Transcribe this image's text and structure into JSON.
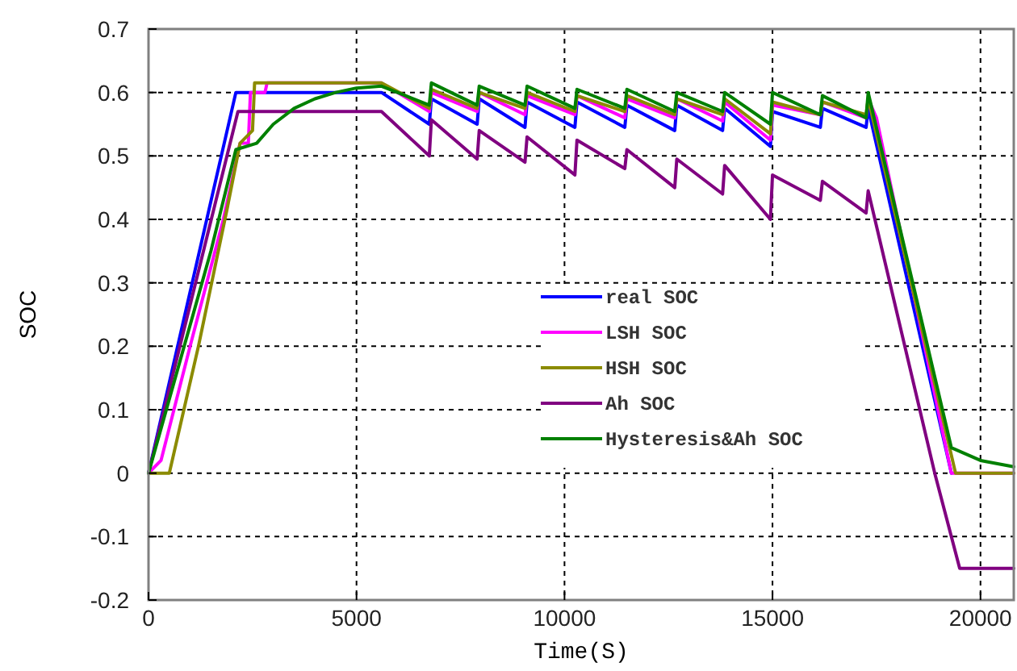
{
  "chart_data": {
    "type": "line",
    "xlabel": "Time(S)",
    "ylabel": "SOC",
    "xlim": [
      0,
      20800
    ],
    "xticks": [
      0,
      5000,
      10000,
      15000,
      20000
    ],
    "ylim": [
      -0.2,
      0.7
    ],
    "yticks": [
      -0.2,
      -0.1,
      0,
      0.1,
      0.2,
      0.3,
      0.4,
      0.5,
      0.6,
      0.7
    ],
    "grid": true,
    "legend": "right",
    "line_style": "solid",
    "marker": "none",
    "series": [
      {
        "name": "real SOC",
        "color": "#0000ff",
        "x": [
          0,
          2100,
          5600,
          6750,
          6800,
          7900,
          7950,
          9050,
          9100,
          10250,
          10300,
          11450,
          11500,
          12650,
          12700,
          13800,
          13850,
          14950,
          15000,
          16150,
          16200,
          17250,
          17300,
          19300
        ],
        "values": [
          0,
          0.6,
          0.6,
          0.55,
          0.59,
          0.55,
          0.59,
          0.545,
          0.585,
          0.545,
          0.585,
          0.545,
          0.58,
          0.54,
          0.58,
          0.54,
          0.575,
          0.515,
          0.57,
          0.545,
          0.575,
          0.545,
          0.575,
          0
        ]
      },
      {
        "name": "LSH SOC",
        "color": "#ff00ff",
        "x": [
          0,
          300,
          1000,
          1800,
          2200,
          2400,
          2450,
          2800,
          2850,
          5600,
          6750,
          6800,
          7900,
          7950,
          9050,
          9100,
          10250,
          10300,
          11450,
          11500,
          12650,
          12700,
          13800,
          13850,
          14950,
          15000,
          16150,
          16200,
          17250,
          17300,
          17500,
          19300,
          20800
        ],
        "values": [
          0,
          0.02,
          0.2,
          0.4,
          0.52,
          0.52,
          0.6,
          0.6,
          0.615,
          0.615,
          0.57,
          0.6,
          0.57,
          0.6,
          0.565,
          0.595,
          0.565,
          0.595,
          0.56,
          0.59,
          0.56,
          0.59,
          0.555,
          0.585,
          0.525,
          0.58,
          0.565,
          0.585,
          0.56,
          0.59,
          0.56,
          0,
          0
        ]
      },
      {
        "name": "HSH SOC",
        "color": "#8b8b00",
        "x": [
          0,
          500,
          1200,
          1900,
          2200,
          2500,
          2550,
          5600,
          6750,
          6800,
          7900,
          7950,
          9050,
          9100,
          10250,
          10300,
          11450,
          11500,
          12650,
          12700,
          13800,
          13850,
          14950,
          15000,
          16150,
          16200,
          17250,
          17300,
          19400,
          20800
        ],
        "values": [
          0,
          0,
          0.2,
          0.42,
          0.52,
          0.54,
          0.615,
          0.615,
          0.575,
          0.605,
          0.575,
          0.6,
          0.575,
          0.6,
          0.57,
          0.595,
          0.57,
          0.595,
          0.565,
          0.59,
          0.565,
          0.59,
          0.535,
          0.585,
          0.565,
          0.585,
          0.565,
          0.59,
          0,
          0
        ]
      },
      {
        "name": "Ah SOC",
        "color": "#800080",
        "x": [
          0,
          2150,
          5600,
          6750,
          6800,
          7900,
          7950,
          9050,
          9100,
          10250,
          10300,
          11450,
          11500,
          12650,
          12700,
          13800,
          13850,
          14950,
          15000,
          16150,
          16200,
          17250,
          17300,
          18900,
          19500,
          20800
        ],
        "values": [
          0,
          0.57,
          0.57,
          0.5,
          0.557,
          0.495,
          0.54,
          0.49,
          0.53,
          0.47,
          0.525,
          0.48,
          0.51,
          0.45,
          0.495,
          0.44,
          0.485,
          0.4,
          0.47,
          0.43,
          0.46,
          0.41,
          0.445,
          0,
          -0.15,
          -0.15
        ]
      },
      {
        "name": "Hysteresis&Ah SOC",
        "color": "#008000",
        "x": [
          0,
          1500,
          2100,
          2600,
          3000,
          3500,
          4000,
          4500,
          5000,
          5600,
          6750,
          6800,
          7900,
          7950,
          9050,
          9100,
          10250,
          10300,
          11450,
          11500,
          12650,
          12700,
          13800,
          13850,
          14950,
          15000,
          16150,
          16200,
          17250,
          17300,
          19300,
          20000,
          20800
        ],
        "values": [
          0,
          0.35,
          0.51,
          0.52,
          0.55,
          0.575,
          0.59,
          0.6,
          0.607,
          0.61,
          0.58,
          0.615,
          0.58,
          0.61,
          0.58,
          0.61,
          0.575,
          0.605,
          0.575,
          0.605,
          0.57,
          0.6,
          0.57,
          0.6,
          0.55,
          0.6,
          0.565,
          0.595,
          0.56,
          0.6,
          0.04,
          0.02,
          0.01
        ]
      }
    ]
  }
}
